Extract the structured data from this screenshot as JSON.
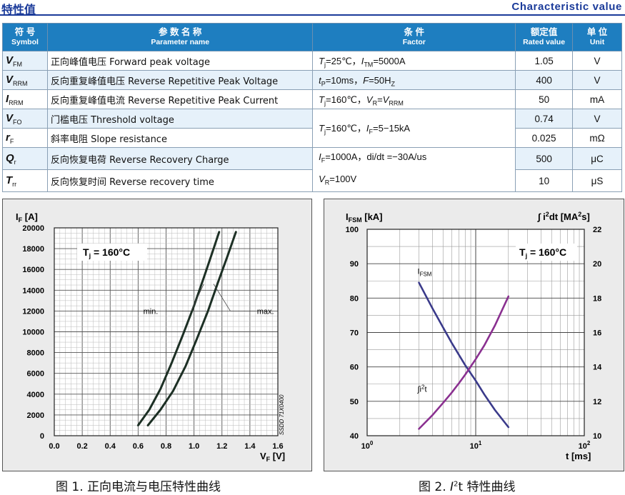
{
  "header": {
    "title_cn": "特性值",
    "title_en": "Characteristic value"
  },
  "table": {
    "headers": [
      {
        "cn": "符 号",
        "en": "Symbol"
      },
      {
        "cn": "参 数 名 称",
        "en": "Parameter name"
      },
      {
        "cn": "条 件",
        "en": "Factor"
      },
      {
        "cn": "额定值",
        "en": "Rated value"
      },
      {
        "cn": "单 位",
        "en": "Unit"
      }
    ],
    "rows": [
      {
        "sym": "V",
        "sub": "FM",
        "name": "正向峰值电压 Forward peak voltage",
        "value": "1.05",
        "unit": "V"
      },
      {
        "sym": "V",
        "sub": "RRM",
        "name": "反向重复峰值电压 Reverse Repetitive Peak Voltage",
        "value": "400",
        "unit": "V"
      },
      {
        "sym": "I",
        "sub": "RRM",
        "name": "反向重复峰值电流 Reverse Repetitive Peak Current",
        "value": "50",
        "unit": "mA"
      },
      {
        "sym": "V",
        "sub": "FO",
        "name": "门槛电压 Threshold voltage",
        "value": "0.74",
        "unit": "V"
      },
      {
        "sym": "r",
        "sub": "F",
        "name": "斜率电阻 Slope resistance",
        "value": "0.025",
        "unit": "mΩ"
      },
      {
        "sym": "Q",
        "sub": "r",
        "name": "反向恢复电荷 Reverse Recovery Charge",
        "value": "500",
        "unit": "μC"
      },
      {
        "sym": "T",
        "sub": "rr",
        "name": "反向恢复时间 Reverse recovery time",
        "value": "10",
        "unit": "μS"
      }
    ],
    "factors": {
      "f1": {
        "a": "T",
        "as": "j",
        "b": "=25℃，",
        "c": "I",
        "cs": "TM",
        "d": "=5000A"
      },
      "f2": {
        "a": "t",
        "as": "P",
        "b": "=10ms，",
        "c": "F",
        "d": "=50H",
        "ds": "Z"
      },
      "f3": {
        "a": "T",
        "as": "j",
        "b": "=160℃，",
        "c": "V",
        "cs": "R",
        "d": "=",
        "e": "V",
        "es": "RRM"
      },
      "f4": {
        "a": "T",
        "as": "j",
        "b": "=160℃，",
        "c": "I",
        "cs": "F",
        "d": "=5−15kA"
      },
      "f5": {
        "a": "I",
        "as": "F",
        "b": "=1000A，di/dt =−30A/us"
      },
      "f6": {
        "a": "V",
        "as": "R",
        "b": "=100V"
      }
    }
  },
  "figures": {
    "fig1_caption": "图 1. 正向电流与电压特性曲线",
    "fig2_caption_pre": "图 2. ",
    "fig2_caption_i": "I",
    "fig2_caption_sup": "2",
    "fig2_caption_post": "t 特性曲线"
  },
  "chart_data": [
    {
      "type": "line",
      "y_label": "I",
      "y_label_sub": "F",
      "y_label_unit": " [A]",
      "x_label": "V",
      "x_label_sub": "F",
      "x_label_unit": " [V]",
      "xlim": [
        0.0,
        1.6
      ],
      "ylim": [
        0,
        20000
      ],
      "x_ticks": [
        "0.0",
        "0.2",
        "0.4",
        "0.6",
        "0.8",
        "1.0",
        "1.2",
        "1.4",
        "1.6"
      ],
      "y_ticks": [
        "0",
        "2000",
        "4000",
        "6000",
        "8000",
        "10000",
        "12000",
        "14000",
        "16000",
        "18000",
        "20000"
      ],
      "condition": "T",
      "condition_sub": "j",
      "condition_value": " = 160°C",
      "side_note": "SSDD 71X0400",
      "series": [
        {
          "name": "min.",
          "x": [
            0.6,
            0.68,
            0.76,
            0.84,
            0.92,
            1.0,
            1.07,
            1.13,
            1.18
          ],
          "y": [
            1000,
            2500,
            4500,
            7000,
            9700,
            12500,
            15200,
            17600,
            19600
          ]
        },
        {
          "name": "max.",
          "x": [
            0.67,
            0.76,
            0.85,
            0.94,
            1.02,
            1.1,
            1.17,
            1.24,
            1.3
          ],
          "y": [
            1000,
            2500,
            4300,
            6700,
            9300,
            12000,
            14700,
            17300,
            19600
          ]
        }
      ]
    },
    {
      "type": "line",
      "y_label": "I",
      "y_label_sub": "FSM",
      "y_label_unit": " [kA]",
      "y2_label_pre": "∫ i",
      "y2_label_sup": "2",
      "y2_label_mid": "dt [MA",
      "y2_label_sup2": "2",
      "y2_label_end": "s]",
      "x_label": "t [ms]",
      "x_scale": "log",
      "xlim": [
        1,
        100
      ],
      "ylim": [
        40,
        100
      ],
      "y2lim": [
        10,
        22
      ],
      "x_ticks": [
        {
          "base": "10",
          "exp": "0"
        },
        {
          "base": "10",
          "exp": "1"
        },
        {
          "base": "10",
          "exp": "2"
        }
      ],
      "y_ticks": [
        "40",
        "50",
        "60",
        "70",
        "80",
        "90",
        "100"
      ],
      "y2_ticks": [
        "10",
        "12",
        "14",
        "16",
        "18",
        "20",
        "22"
      ],
      "condition": "T",
      "condition_sub": "j",
      "condition_value": " = 160°C",
      "series": [
        {
          "name": "I",
          "name_sub": "FSM",
          "axis": "left",
          "x": [
            3,
            4,
            5,
            6,
            7,
            8,
            10,
            12,
            15,
            20
          ],
          "y": [
            84.5,
            77,
            71.5,
            67,
            63.5,
            60.5,
            56,
            52,
            47.5,
            42.5
          ]
        },
        {
          "name": "∫i",
          "name_sup": "2",
          "name_post": "t",
          "axis": "right",
          "x": [
            3,
            4,
            5,
            6,
            7,
            8,
            10,
            12,
            15,
            20
          ],
          "y": [
            10.4,
            11.2,
            11.9,
            12.5,
            13.05,
            13.55,
            14.45,
            15.25,
            16.4,
            18.1
          ]
        }
      ]
    }
  ]
}
